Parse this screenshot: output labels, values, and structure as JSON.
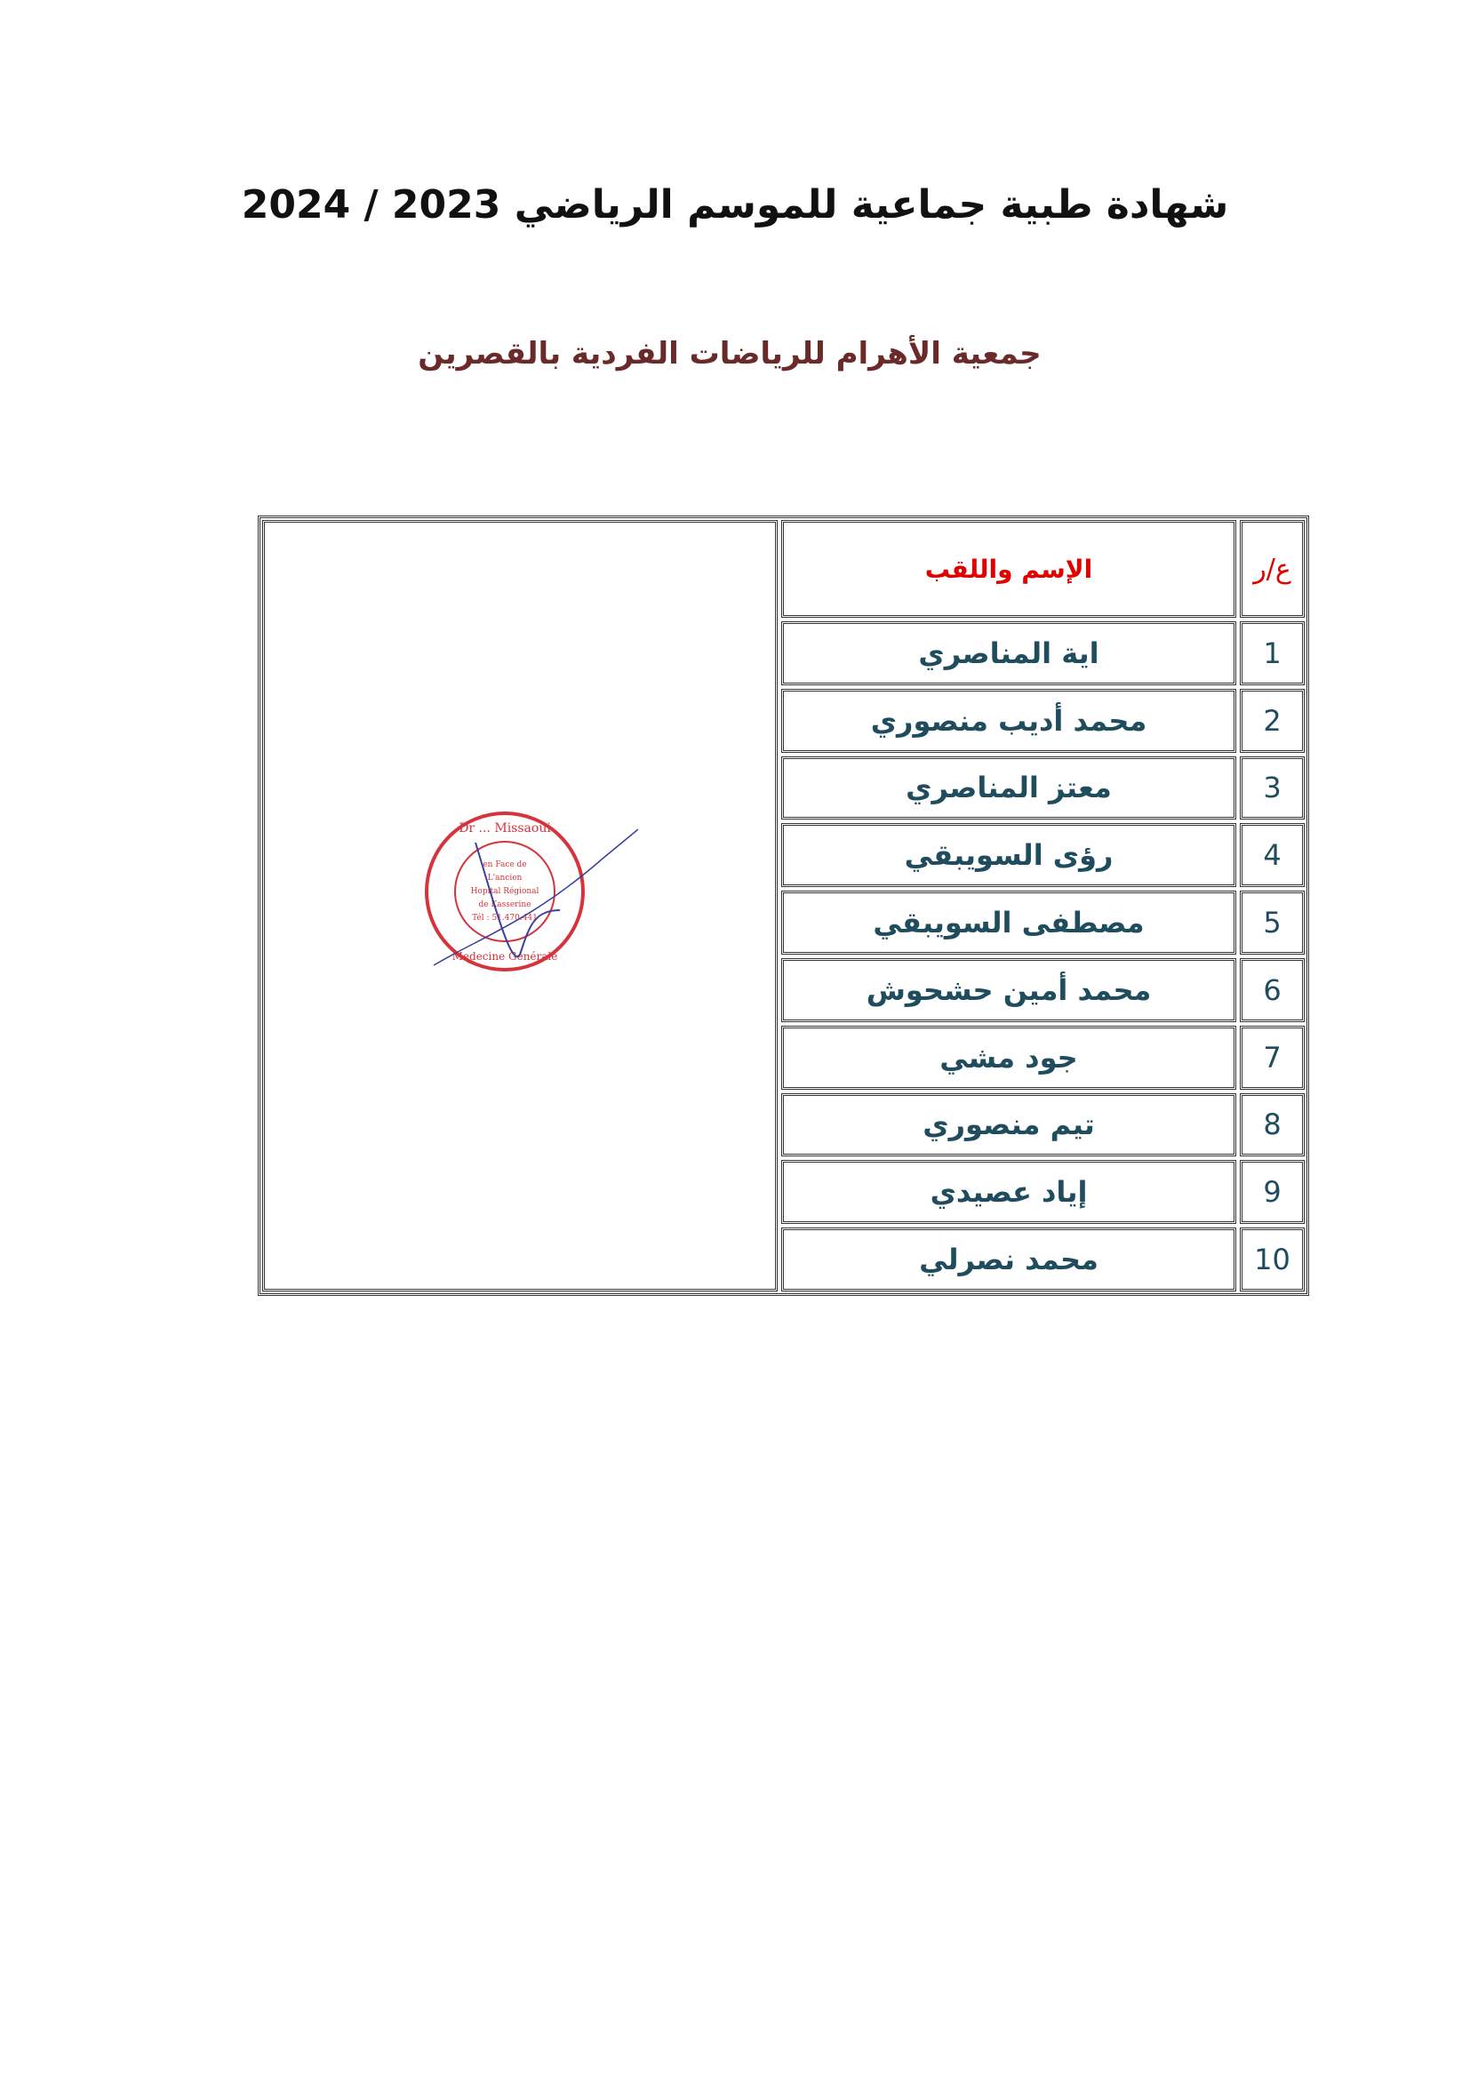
{
  "title": "شهادة طبية جماعية للموسم الرياضي 2023 / 2024",
  "subtitle": "جمعية الأهرام للرياضات الفردية بالقصرين",
  "table": {
    "headers": {
      "number": "ع/ر",
      "name": "الإسم واللقب"
    },
    "rows": [
      {
        "number": "1",
        "name": "اية المناصري"
      },
      {
        "number": "2",
        "name": "محمد أديب منصوري"
      },
      {
        "number": "3",
        "name": "معتز المناصري"
      },
      {
        "number": "4",
        "name": "رؤى السويبقي"
      },
      {
        "number": "5",
        "name": "مصطفى السويبقي"
      },
      {
        "number": "6",
        "name": "محمد أمين حشحوش"
      },
      {
        "number": "7",
        "name": "جود مشي"
      },
      {
        "number": "8",
        "name": "تيم منصوري"
      },
      {
        "number": "9",
        "name": "إياد عصيدي"
      },
      {
        "number": "10",
        "name": "محمد نصرلي"
      }
    ]
  },
  "stamp": {
    "outer_top": "Dr ... Missaoui",
    "outer_bottom": "Medecine Générale",
    "inner": [
      "en Face de",
      "L'ancien",
      "Hopital Régional",
      "de Kasserine",
      "Tél : 51.470.441"
    ],
    "color": "#d6333c",
    "signature_color": "#3b3fa0"
  },
  "colors": {
    "header": "#e00000",
    "names": "#1f4d5e",
    "subtitle": "#6a2a2a"
  }
}
